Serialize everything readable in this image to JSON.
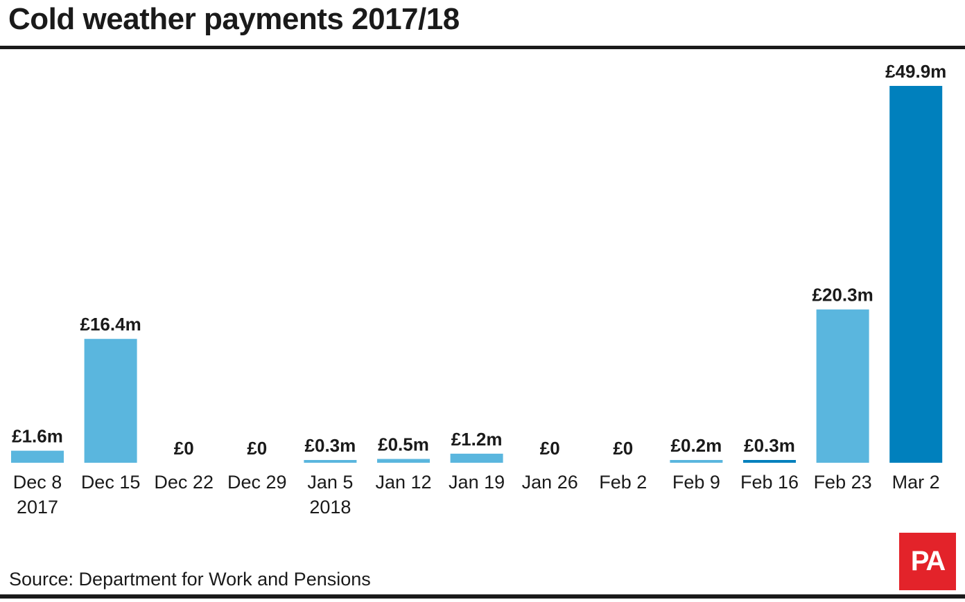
{
  "title": "Cold weather payments 2017/18",
  "source": "Source: Department for Work and Pensions",
  "logo_text": "PA",
  "colors": {
    "bar": "#5ab6de",
    "bar_highlight": "#0080bd",
    "text": "#1a1a1a",
    "logo_bg": "#e3232a"
  },
  "chart_data": {
    "type": "bar",
    "title": "Cold weather payments 2017/18",
    "unit": "£m",
    "categories": [
      [
        "Dec 8",
        "2017"
      ],
      [
        "Dec 15"
      ],
      [
        "Dec 22"
      ],
      [
        "Dec 29"
      ],
      [
        "Jan 5",
        "2018"
      ],
      [
        "Jan 12"
      ],
      [
        "Jan 19"
      ],
      [
        "Jan 26"
      ],
      [
        "Feb 2"
      ],
      [
        "Feb 9"
      ],
      [
        "Feb 16"
      ],
      [
        "Feb 23"
      ],
      [
        "Mar 2"
      ]
    ],
    "values": [
      1.6,
      16.4,
      0,
      0,
      0.3,
      0.5,
      1.2,
      0,
      0,
      0.2,
      0.3,
      20.3,
      49.9
    ],
    "labels": [
      "£1.6m",
      "£16.4m",
      "£0",
      "£0",
      "£0.3m",
      "£0.5m",
      "£1.2m",
      "£0",
      "£0",
      "£0.2m",
      "£0.3m",
      "£20.3m",
      "£49.9m"
    ],
    "highlight": [
      false,
      false,
      false,
      false,
      false,
      false,
      false,
      false,
      false,
      false,
      true,
      false,
      true
    ],
    "ylim": [
      0,
      49.9
    ],
    "grid": false,
    "legend": "none"
  }
}
